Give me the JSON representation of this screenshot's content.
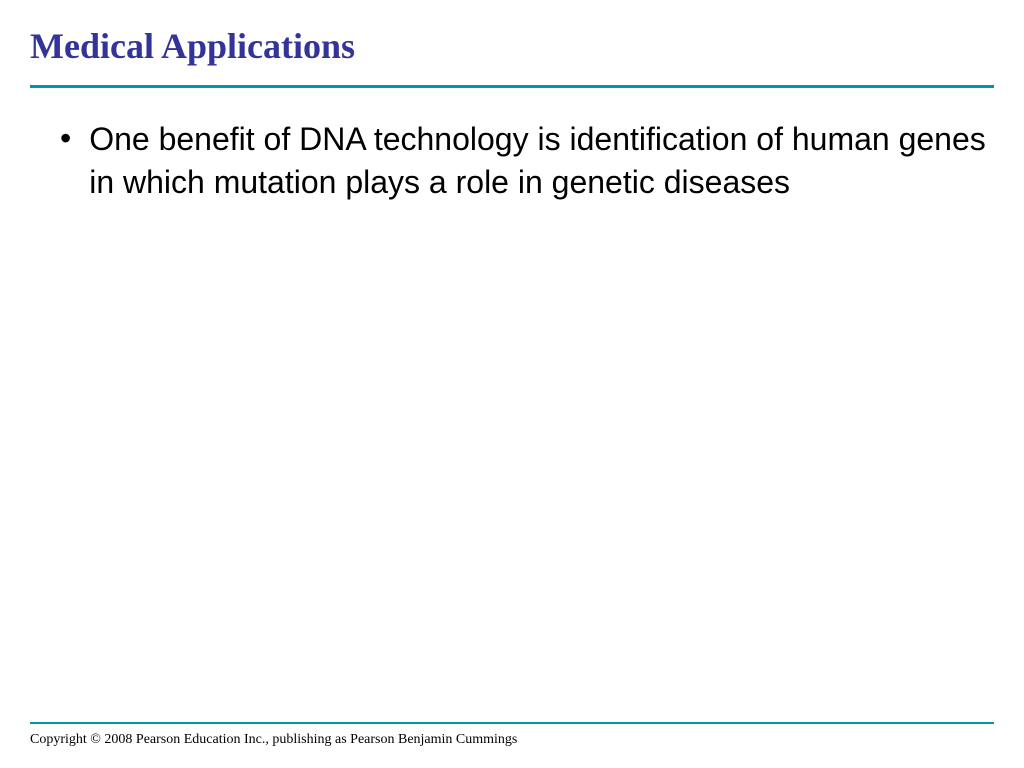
{
  "slide": {
    "title": "Medical Applications",
    "title_color": "#333399",
    "title_font_family": "Times New Roman",
    "title_font_size": 36,
    "title_font_weight": "bold",
    "divider_color": "#009999",
    "divider_top_height": 3,
    "divider_bottom_height": 2,
    "background_color": "#ffffff",
    "bullets": [
      {
        "text": "One benefit of DNA technology is identification of human genes in which mutation plays a role in genetic diseases"
      }
    ],
    "bullet_font_size": 32,
    "bullet_color": "#000000",
    "bullet_marker": "•",
    "footer": {
      "text": "Copyright © 2008 Pearson Education Inc., publishing  as Pearson Benjamin Cummings",
      "font_family": "Times New Roman",
      "font_size": 14,
      "color": "#000000"
    }
  }
}
